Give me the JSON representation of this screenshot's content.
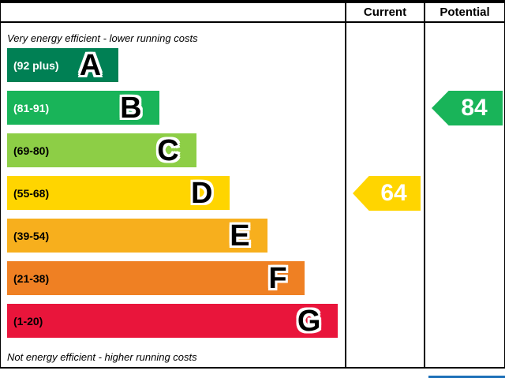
{
  "header": {
    "current_label": "Current",
    "potential_label": "Potential"
  },
  "captions": {
    "top": "Very energy efficient - lower running costs",
    "bottom": "Not energy efficient - higher running costs"
  },
  "bands": [
    {
      "letter": "A",
      "range": "(92 plus)",
      "color": "#008054",
      "text_color": "#ffffff",
      "width_pct": 33
    },
    {
      "letter": "B",
      "range": "(81-91)",
      "color": "#19b459",
      "text_color": "#ffffff",
      "width_pct": 45
    },
    {
      "letter": "C",
      "range": "(69-80)",
      "color": "#8dce46",
      "text_color": "#000000",
      "width_pct": 56
    },
    {
      "letter": "D",
      "range": "(55-68)",
      "color": "#ffd500",
      "text_color": "#000000",
      "width_pct": 66
    },
    {
      "letter": "E",
      "range": "(39-54)",
      "color": "#f7af1d",
      "text_color": "#000000",
      "width_pct": 77
    },
    {
      "letter": "F",
      "range": "(21-38)",
      "color": "#ef8023",
      "text_color": "#000000",
      "width_pct": 88
    },
    {
      "letter": "G",
      "range": "(1-20)",
      "color": "#e9153b",
      "text_color": "#000000",
      "width_pct": 98
    }
  ],
  "current": {
    "value": "64",
    "band": "D",
    "band_index": 3,
    "color": "#ffd500"
  },
  "potential": {
    "value": "84",
    "band": "B",
    "band_index": 1,
    "color": "#19b459"
  },
  "colors": {
    "border": "#000000",
    "next_section_edge": "#1d70b8"
  },
  "chart_data": {
    "type": "bar",
    "orientation": "horizontal",
    "categories": [
      "A",
      "B",
      "C",
      "D",
      "E",
      "F",
      "G"
    ],
    "ranges": [
      "92 plus",
      "81-91",
      "69-80",
      "55-68",
      "39-54",
      "21-38",
      "1-20"
    ],
    "bar_widths_pct": [
      33,
      45,
      56,
      66,
      77,
      88,
      98
    ],
    "columns": [
      "Current",
      "Potential"
    ],
    "current_rating": 64,
    "current_band": "D",
    "potential_rating": 84,
    "potential_band": "B",
    "top_caption": "Very energy efficient - lower running costs",
    "bottom_caption": "Not energy efficient - higher running costs",
    "legend_position": "none",
    "grid": false
  }
}
